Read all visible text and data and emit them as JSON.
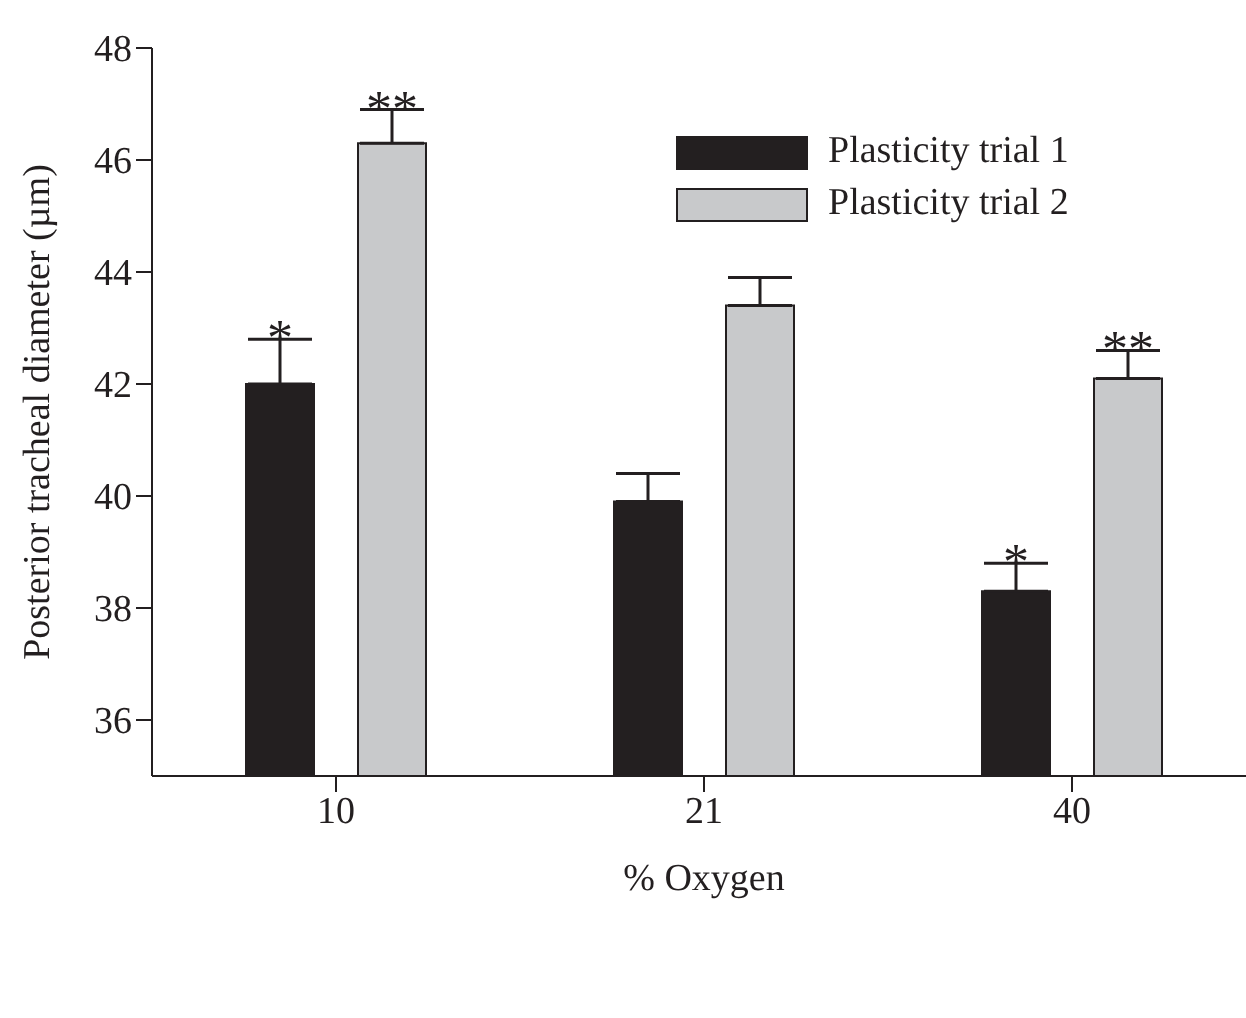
{
  "chart_data": {
    "type": "bar",
    "xlabel": "% Oxygen",
    "ylabel": "Posterior tracheal diameter (µm)",
    "categories": [
      "10",
      "21",
      "40"
    ],
    "series": [
      {
        "name": "Plasticity trial 1",
        "color": "#231f20",
        "values": [
          42.0,
          39.9,
          38.3
        ],
        "errors": [
          [
            42.0,
            42.8
          ],
          [
            39.9,
            40.4
          ],
          [
            38.3,
            38.8
          ]
        ],
        "value_labels": [
          "*",
          null,
          "*"
        ]
      },
      {
        "name": "Plasticity trial 2",
        "color": "#c8c9cb",
        "values": [
          46.3,
          43.4,
          42.1
        ],
        "errors": [
          [
            46.3,
            46.9
          ],
          [
            43.4,
            43.9
          ],
          [
            42.1,
            42.6
          ]
        ],
        "value_labels": [
          "**",
          null,
          "**"
        ]
      }
    ],
    "ylim": [
      35,
      48
    ],
    "yticks": [
      36,
      38,
      40,
      42,
      44,
      46,
      48
    ],
    "legend": "top right"
  }
}
